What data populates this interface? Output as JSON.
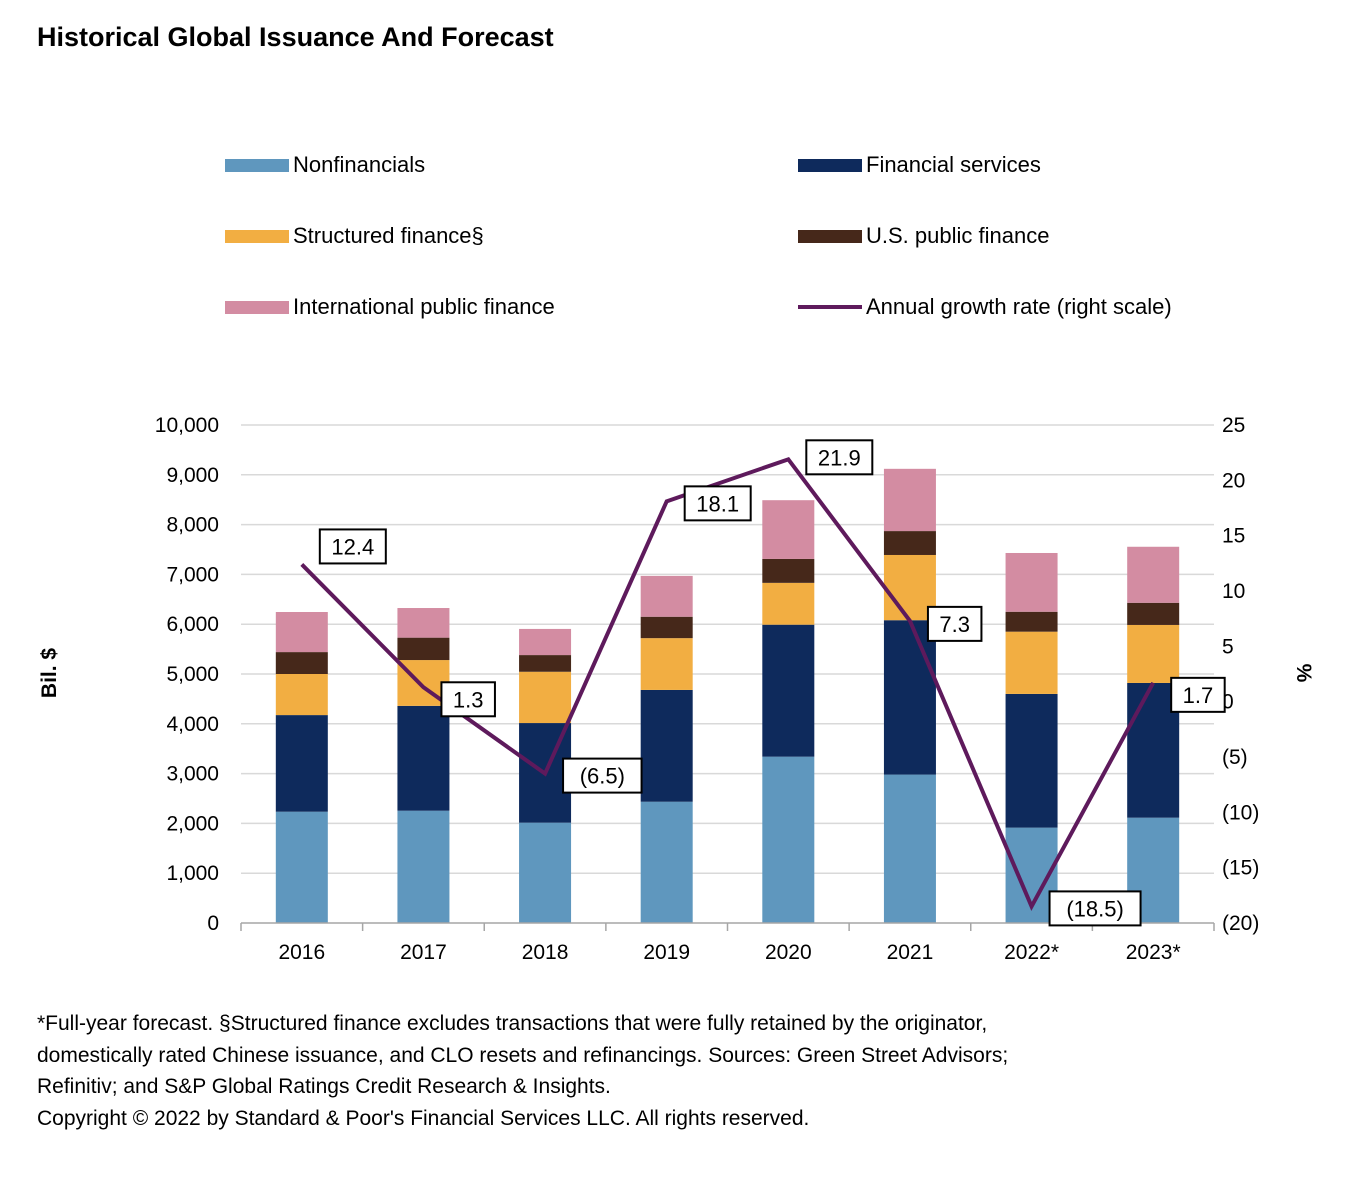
{
  "title": "Historical Global Issuance And Forecast",
  "chart_data": {
    "type": "bar",
    "stacked": true,
    "title": "Historical Global Issuance And Forecast",
    "categories": [
      "2016",
      "2017",
      "2018",
      "2019",
      "2020",
      "2021",
      "2022*",
      "2023*"
    ],
    "series": [
      {
        "name": "Nonfinancials",
        "color": "#5F97BE",
        "values": [
          2235,
          2255,
          2015,
          2435,
          3340,
          2980,
          1915,
          2115
        ]
      },
      {
        "name": "Financial services",
        "color": "#0E2A5C",
        "values": [
          1940,
          2105,
          2000,
          2245,
          2650,
          3100,
          2685,
          2705
        ]
      },
      {
        "name": "Structured finance§",
        "color": "#F2AE42",
        "values": [
          825,
          920,
          1030,
          1040,
          840,
          1310,
          1250,
          1165
        ]
      },
      {
        "name": "U.S. public finance",
        "color": "#46281A",
        "values": [
          440,
          450,
          335,
          430,
          480,
          480,
          400,
          445
        ]
      },
      {
        "name": "International public finance",
        "color": "#D38CA2",
        "values": [
          805,
          595,
          525,
          820,
          1180,
          1250,
          1180,
          1125
        ]
      }
    ],
    "line_series": {
      "name": "Annual growth rate (right scale)",
      "color": "#5E1A5C",
      "axis": "right",
      "values": [
        12.4,
        1.3,
        -6.5,
        18.1,
        21.9,
        7.3,
        -18.5,
        1.7
      ],
      "labels": [
        "12.4",
        "1.3",
        "(6.5)",
        "18.1",
        "21.9",
        "7.3",
        "(18.5)",
        "1.7"
      ]
    },
    "ylabel": "Bil. $",
    "ylim": [
      0,
      10000
    ],
    "yticks": [
      "0",
      "1,000",
      "2,000",
      "3,000",
      "4,000",
      "5,000",
      "6,000",
      "7,000",
      "8,000",
      "9,000",
      "10,000"
    ],
    "y2label": "%",
    "y2lim": [
      -20,
      25
    ],
    "y2ticks": [
      "(20)",
      "(15)",
      "(10)",
      "(5)",
      "0",
      "5",
      "10",
      "15",
      "20",
      "25"
    ],
    "grid": true,
    "legend_position": "top"
  },
  "footnote": [
    "*Full-year forecast. §Structured finance excludes transactions that were fully retained by the originator,",
    "domestically rated Chinese issuance, and CLO resets and refinancings. Sources: Green Street Advisors;",
    "Refinitiv; and S&P Global Ratings Credit Research & Insights.",
    "Copyright © 2022 by Standard & Poor's Financial Services LLC. All rights reserved."
  ]
}
